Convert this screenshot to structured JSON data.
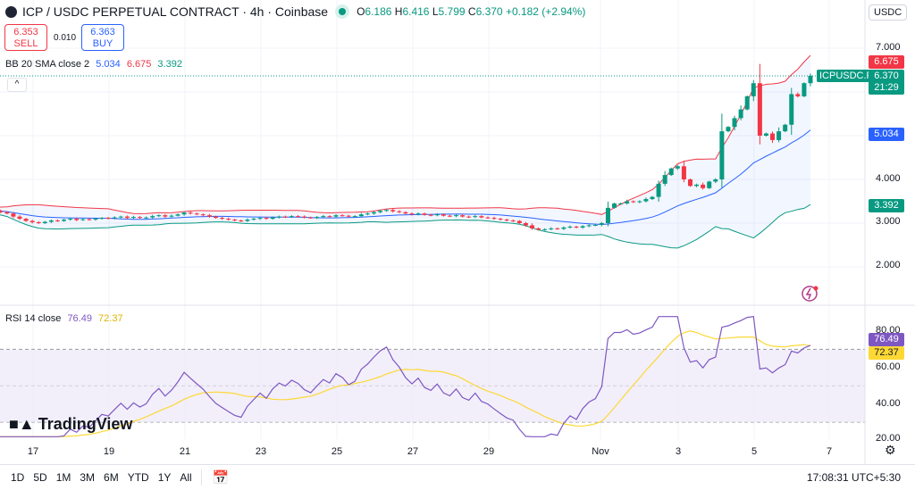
{
  "header": {
    "title": "ICP / USDC PERPETUAL CONTRACT · 4h · Coinbase",
    "open_label": "O",
    "open": "6.186",
    "high_label": "H",
    "high": "6.416",
    "low_label": "L",
    "low": "5.799",
    "close_label": "C",
    "close": "6.370",
    "change": "+0.182 (+2.94%)",
    "currency": "USDC"
  },
  "trade": {
    "sell_price": "6.353",
    "sell_label": "SELL",
    "spread": "0.010",
    "buy_price": "6.363",
    "buy_label": "BUY"
  },
  "bb": {
    "label": "BB 20 SMA close 2",
    "basis": "5.034",
    "upper": "6.675",
    "lower": "3.392"
  },
  "rsi": {
    "label": "RSI 14 close",
    "value": "76.49",
    "ma": "72.37"
  },
  "price_axis": {
    "labels": [
      "7.000",
      "4.000",
      "3.000",
      "2.000"
    ]
  },
  "price_tags": {
    "upper": "6.675",
    "symbol": "ICPUSDC.P",
    "last": "6.370",
    "countdown": "21:29",
    "basis": "5.034",
    "lower": "3.392"
  },
  "rsi_axis": {
    "labels": [
      "80.00",
      "60.00",
      "40.00",
      "20.00"
    ]
  },
  "time_axis": [
    "17",
    "19",
    "21",
    "23",
    "25",
    "27",
    "29",
    "Nov",
    "3",
    "5",
    "7"
  ],
  "bottom_bar": {
    "ranges": [
      "1D",
      "5D",
      "1M",
      "3M",
      "6M",
      "YTD",
      "1Y",
      "All"
    ],
    "clock": "17:08:31 UTC+5:30"
  },
  "watermark": "TradingView",
  "colors": {
    "up": "#089981",
    "down": "#f23645",
    "bb_basis": "#2962ff",
    "bb_upper": "#f23645",
    "bb_lower": "#089981",
    "rsi": "#7e57c2",
    "rsi_ma": "#fdd835"
  },
  "chart_data": {
    "type": "candlestick",
    "timeframe": "4h",
    "closes": [
      3.3,
      3.28,
      3.25,
      3.22,
      3.15,
      3.1,
      3.05,
      3.02,
      3.0,
      3.03,
      3.06,
      3.05,
      3.08,
      3.1,
      3.07,
      3.09,
      3.08,
      3.1,
      3.12,
      3.11,
      3.13,
      3.15,
      3.12,
      3.14,
      3.12,
      3.13,
      3.16,
      3.18,
      3.15,
      3.17,
      3.2,
      3.24,
      3.22,
      3.2,
      3.18,
      3.15,
      3.12,
      3.1,
      3.08,
      3.06,
      3.05,
      3.08,
      3.1,
      3.12,
      3.1,
      3.13,
      3.15,
      3.14,
      3.16,
      3.15,
      3.13,
      3.12,
      3.14,
      3.16,
      3.15,
      3.18,
      3.17,
      3.15,
      3.16,
      3.2,
      3.22,
      3.25,
      3.28,
      3.3,
      3.27,
      3.25,
      3.22,
      3.2,
      3.22,
      3.19,
      3.18,
      3.2,
      3.17,
      3.16,
      3.18,
      3.15,
      3.14,
      3.16,
      3.13,
      3.12,
      3.1,
      3.08,
      3.06,
      3.05,
      3.0,
      2.95,
      2.88,
      2.85,
      2.86,
      2.88,
      2.87,
      2.9,
      2.92,
      2.9,
      2.93,
      2.95,
      2.96,
      3.0,
      3.35,
      3.45,
      3.45,
      3.5,
      3.48,
      3.5,
      3.55,
      3.6,
      3.9,
      4.1,
      4.25,
      4.3,
      4.0,
      3.85,
      3.88,
      3.8,
      3.95,
      4.0,
      5.1,
      5.2,
      5.4,
      5.6,
      5.9,
      6.2,
      5.0,
      5.05,
      4.9,
      5.1,
      5.25,
      5.95,
      5.9,
      6.2,
      6.37
    ],
    "price_range": [
      1.6,
      7.4
    ],
    "rsi_range": [
      20,
      88
    ],
    "rsi_bands": [
      70,
      50,
      30
    ]
  }
}
